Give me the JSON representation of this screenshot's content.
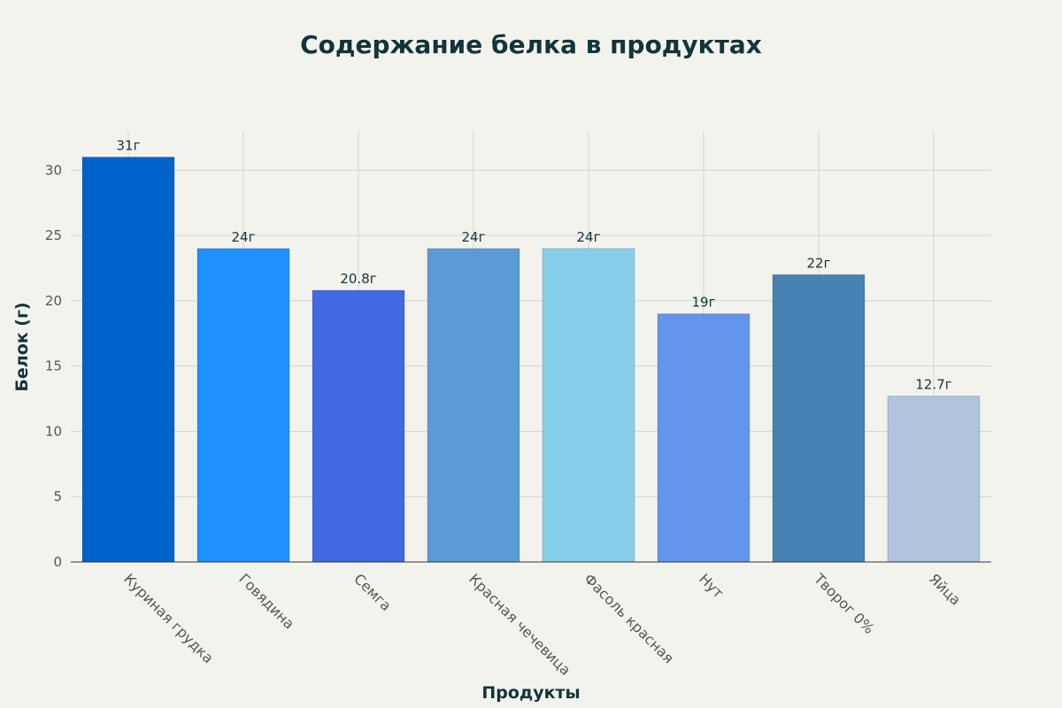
{
  "chart_data": {
    "type": "bar",
    "title": "Содержание белка в продуктах",
    "xlabel": "Продукты",
    "ylabel": "Белок (г)",
    "ylim": [
      0,
      33
    ],
    "yticks": [
      0,
      5,
      10,
      15,
      20,
      25,
      30
    ],
    "grid": true,
    "categories": [
      "Куриная грудка",
      "Говядина",
      "Семга",
      "Красная чечевица",
      "Фасоль красная",
      "Нут",
      "Творог 0%",
      "Яйца"
    ],
    "values": [
      31,
      24,
      20.8,
      24,
      24,
      19,
      22,
      12.7
    ],
    "value_labels": [
      "31г",
      "24г",
      "20.8г",
      "24г",
      "24г",
      "19г",
      "22г",
      "12.7г"
    ],
    "colors": [
      "#0063cc",
      "#1e90ff",
      "#4169e1",
      "#5b9bd5",
      "#87ceeb",
      "#6495ed",
      "#4682b4",
      "#b0c4de"
    ]
  }
}
